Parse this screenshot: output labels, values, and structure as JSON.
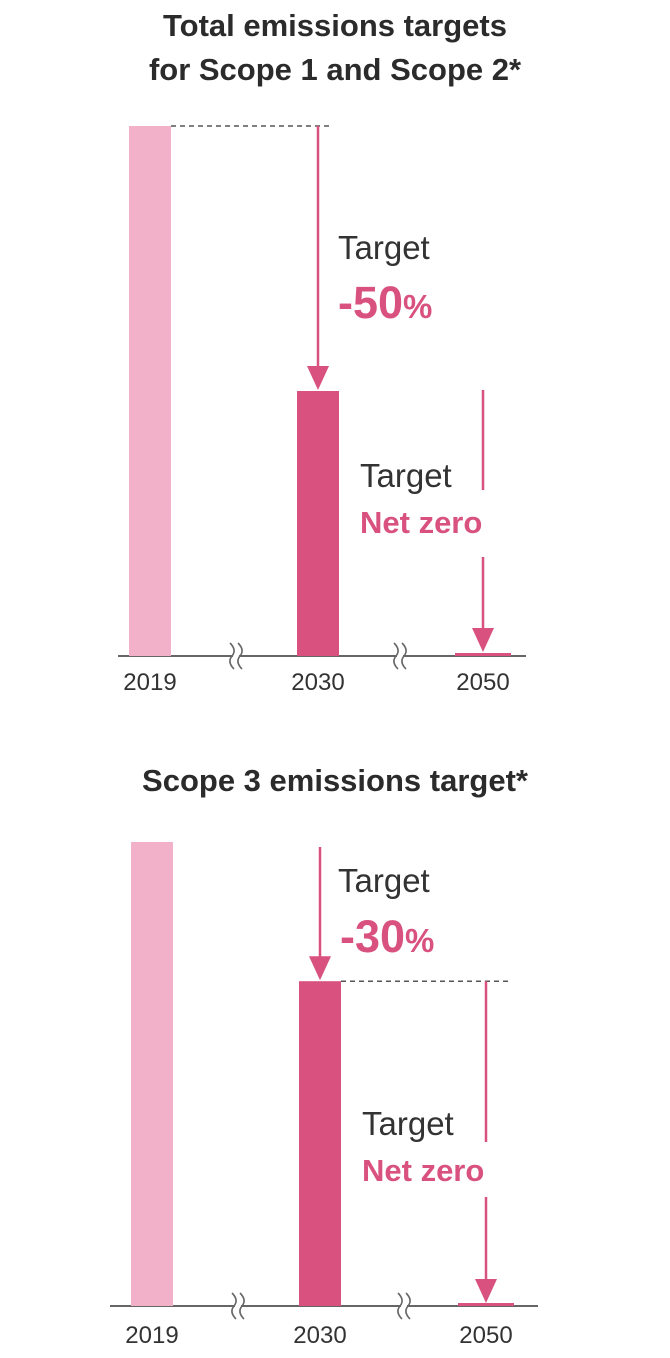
{
  "colors": {
    "bar_2019": "#f2b1c8",
    "bar_target": "#d9527f",
    "accent": "#d9527f",
    "axis": "#666666",
    "text": "#333333"
  },
  "chart_data": [
    {
      "type": "bar",
      "title_line1": "Total emissions targets",
      "title_line2": "for Scope 1 and Scope 2*",
      "categories": [
        "2019",
        "2030",
        "2050"
      ],
      "values": [
        100,
        50,
        0
      ],
      "ylim": [
        0,
        100
      ],
      "grid": false,
      "axis_break": true,
      "annotations": [
        {
          "word": "Target",
          "value": "-50",
          "unit": "%"
        },
        {
          "word": "Target",
          "value": "Net zero",
          "unit": ""
        }
      ]
    },
    {
      "type": "bar",
      "title_line1": "Scope 3 emissions target*",
      "title_line2": "",
      "categories": [
        "2019",
        "2030",
        "2050"
      ],
      "values": [
        100,
        70,
        0
      ],
      "ylim": [
        0,
        100
      ],
      "grid": false,
      "axis_break": true,
      "annotations": [
        {
          "word": "Target",
          "value": "-30",
          "unit": "%"
        },
        {
          "word": "Target",
          "value": "Net zero",
          "unit": ""
        }
      ]
    }
  ]
}
